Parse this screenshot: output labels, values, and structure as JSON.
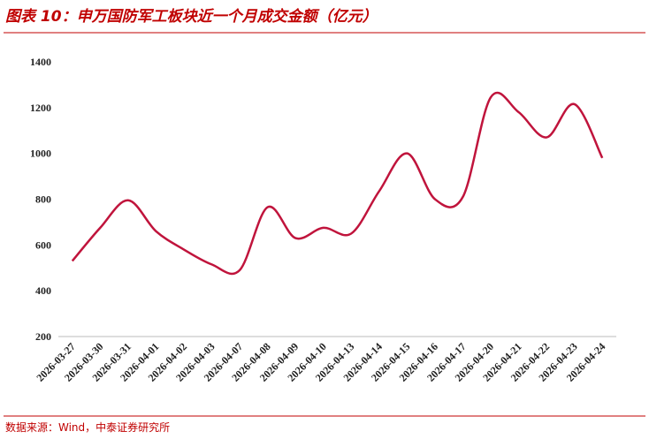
{
  "chart_data": {
    "type": "line",
    "title": "图表 10：申万国防军工板块近一个月成交金额（亿元）",
    "source": "数据来源：Wind，中泰证券研究所",
    "categories": [
      "2026-03-27",
      "2026-03-30",
      "2026-03-31",
      "2026-04-01",
      "2026-04-02",
      "2026-04-03",
      "2026-04-07",
      "2026-04-08",
      "2026-04-09",
      "2026-04-10",
      "2026-04-13",
      "2026-04-14",
      "2026-04-15",
      "2026-04-16",
      "2026-04-17",
      "2026-04-20",
      "2026-04-21",
      "2026-04-22",
      "2026-04-23",
      "2026-04-24"
    ],
    "values": [
      530,
      675,
      795,
      660,
      580,
      515,
      490,
      765,
      630,
      675,
      650,
      835,
      1000,
      800,
      810,
      1245,
      1180,
      1070,
      1215,
      980
    ],
    "color": "#c0143c",
    "smooth": true,
    "ylim": [
      200,
      1400
    ],
    "yticks": [
      200,
      400,
      600,
      800,
      1000,
      1200,
      1400
    ],
    "grid": false
  }
}
